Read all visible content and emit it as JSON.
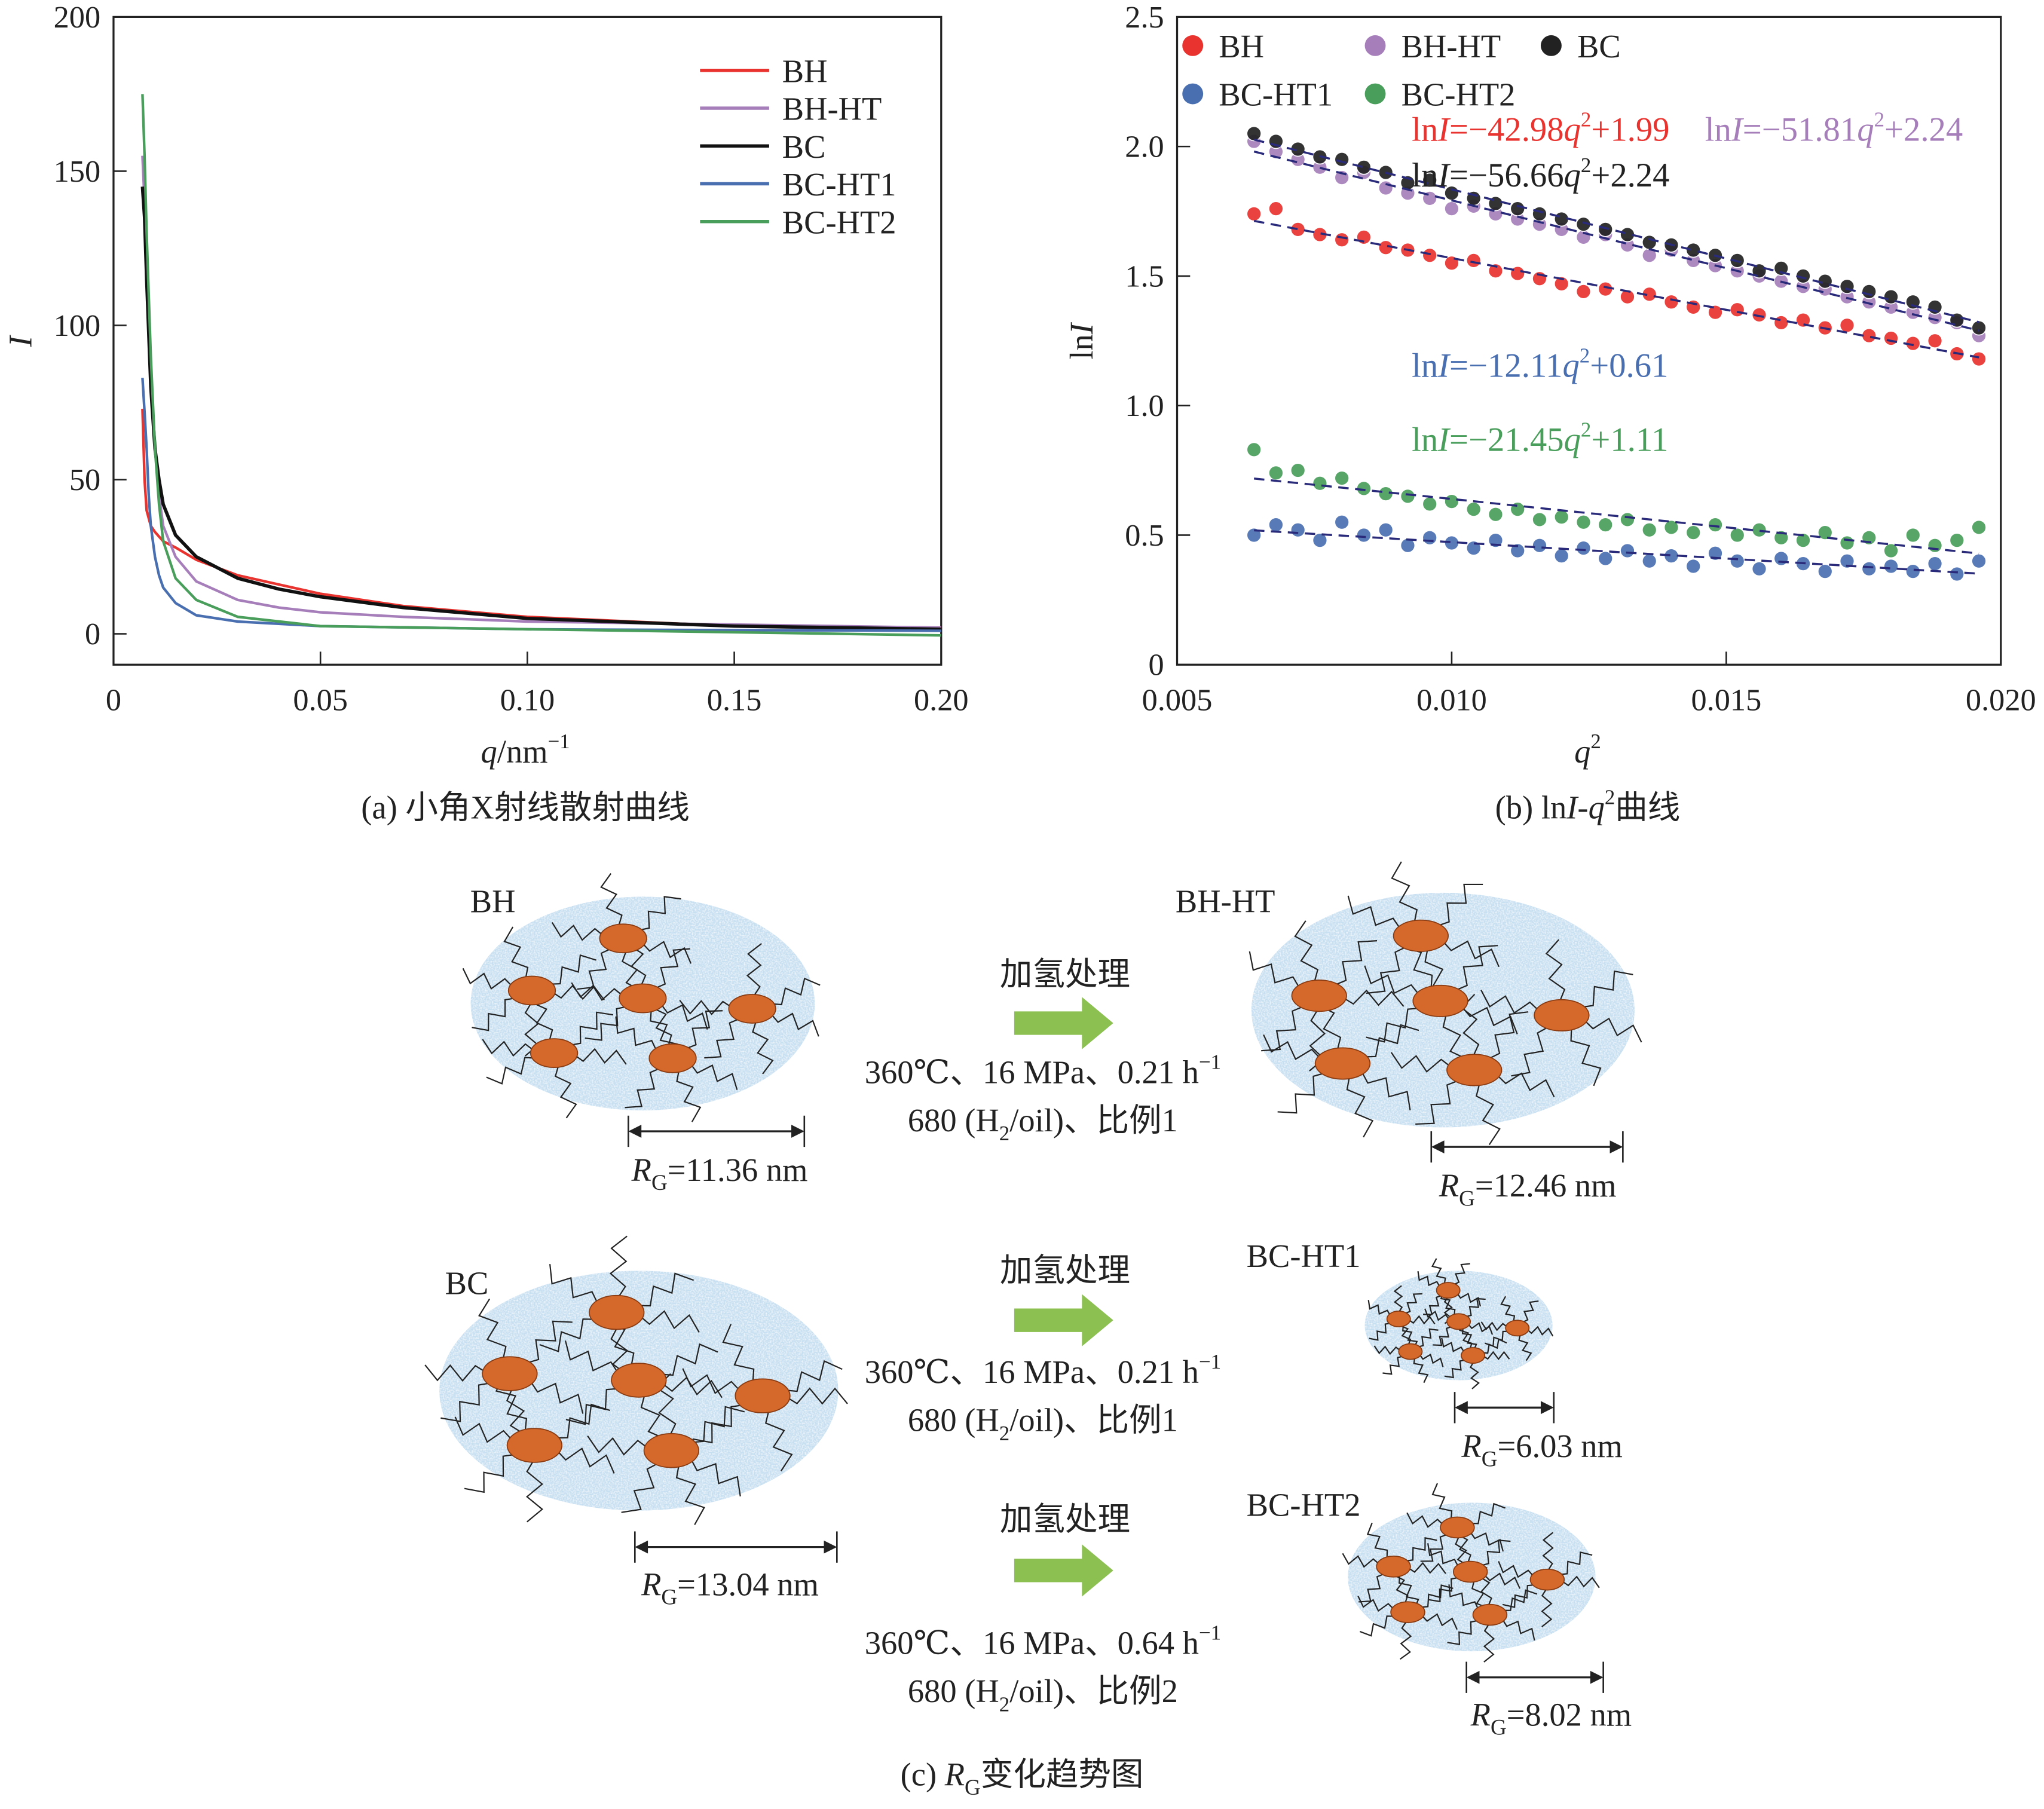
{
  "chart_data": [
    {
      "type": "line",
      "caption": "(a) 小角X射线散射曲线",
      "xlabel": {
        "var": "q",
        "unit": "/nm",
        "sup": "−1"
      },
      "ylabel": "I",
      "xlim": [
        0,
        0.2
      ],
      "ylim": [
        -10,
        200
      ],
      "xticks": [
        0,
        0.05,
        0.1,
        0.15,
        0.2
      ],
      "xtick_labels": [
        "0",
        "0.05",
        "0.10",
        "0.15",
        "0.20"
      ],
      "yticks": [
        0,
        50,
        100,
        150,
        200
      ],
      "ytick_labels": [
        "0",
        "50",
        "100",
        "150",
        "200"
      ],
      "grid": false,
      "legend_position": "top-right",
      "series": [
        {
          "name": "BH",
          "color": "#e8332f",
          "x": [
            0.007,
            0.0075,
            0.008,
            0.009,
            0.01,
            0.012,
            0.015,
            0.02,
            0.03,
            0.04,
            0.05,
            0.07,
            0.1,
            0.15,
            0.2
          ],
          "y": [
            73,
            50,
            40,
            35,
            33,
            30,
            28,
            24,
            19,
            16,
            13,
            9,
            5.5,
            2.5,
            2
          ]
        },
        {
          "name": "BH-HT",
          "color": "#a67fba",
          "x": [
            0.007,
            0.0075,
            0.008,
            0.009,
            0.01,
            0.011,
            0.012,
            0.015,
            0.02,
            0.03,
            0.04,
            0.05,
            0.07,
            0.1,
            0.15,
            0.2
          ],
          "y": [
            155,
            140,
            120,
            85,
            60,
            45,
            35,
            25,
            17,
            11,
            8.5,
            7,
            5.5,
            4,
            3,
            2
          ]
        },
        {
          "name": "BC",
          "color": "#111111",
          "x": [
            0.007,
            0.0075,
            0.008,
            0.009,
            0.01,
            0.011,
            0.012,
            0.015,
            0.02,
            0.03,
            0.04,
            0.05,
            0.07,
            0.1,
            0.15,
            0.2
          ],
          "y": [
            145,
            135,
            115,
            80,
            60,
            50,
            42,
            32,
            25,
            18,
            14.5,
            12,
            8.5,
            5,
            2.5,
            1.5
          ]
        },
        {
          "name": "BC-HT1",
          "color": "#4a6fb0",
          "x": [
            0.007,
            0.0075,
            0.008,
            0.0085,
            0.009,
            0.01,
            0.011,
            0.012,
            0.015,
            0.02,
            0.03,
            0.05,
            0.1,
            0.15,
            0.2
          ],
          "y": [
            83,
            72,
            60,
            45,
            35,
            25,
            19,
            15,
            10,
            6,
            4,
            2.5,
            1.5,
            1.2,
            1
          ]
        },
        {
          "name": "BC-HT2",
          "color": "#4a9e5c",
          "x": [
            0.007,
            0.0075,
            0.008,
            0.009,
            0.01,
            0.011,
            0.012,
            0.015,
            0.02,
            0.03,
            0.05,
            0.1,
            0.15,
            0.2
          ],
          "y": [
            175,
            155,
            130,
            90,
            60,
            42,
            30,
            18,
            11,
            5.5,
            2.5,
            1.5,
            0.5,
            -0.5
          ]
        }
      ]
    },
    {
      "type": "scatter",
      "caption": {
        "prefix": "(b) ln",
        "I": "I",
        "dash": "-",
        "q": "q",
        "sup": "2",
        "suffix": "曲线"
      },
      "xlabel": {
        "var": "q",
        "sup": "2"
      },
      "ylabel": {
        "ln": "ln",
        "I": "I"
      },
      "xlim": [
        0.005,
        0.02
      ],
      "ylim": [
        0,
        2.5
      ],
      "xticks": [
        0.005,
        0.01,
        0.015,
        0.02
      ],
      "xtick_labels": [
        "0.005",
        "0.010",
        "0.015",
        "0.020"
      ],
      "yticks": [
        0,
        0.5,
        1.0,
        1.5,
        2.0,
        2.5
      ],
      "ytick_labels": [
        "0",
        "0.5",
        "1.0",
        "1.5",
        "2.0",
        "2.5"
      ],
      "grid": false,
      "legend_position": "top-left",
      "fit_line_style": "dashed",
      "fit_line_color": "#2a2a7a",
      "x": [
        0.0064,
        0.0068,
        0.0072,
        0.0076,
        0.008,
        0.0084,
        0.0088,
        0.0092,
        0.0096,
        0.01,
        0.0104,
        0.0108,
        0.0112,
        0.0116,
        0.012,
        0.0124,
        0.0128,
        0.0132,
        0.0136,
        0.014,
        0.0144,
        0.0148,
        0.0152,
        0.0156,
        0.016,
        0.0164,
        0.0168,
        0.0172,
        0.0176,
        0.018,
        0.0184,
        0.0188,
        0.0192,
        0.0196
      ],
      "series": [
        {
          "name": "BH",
          "color": "#e8332f",
          "equation": {
            "coef": "−42.98",
            "intercept": "+1.99"
          },
          "y": [
            1.74,
            1.76,
            1.68,
            1.66,
            1.64,
            1.65,
            1.61,
            1.6,
            1.58,
            1.55,
            1.56,
            1.52,
            1.51,
            1.49,
            1.47,
            1.44,
            1.45,
            1.42,
            1.43,
            1.4,
            1.38,
            1.36,
            1.37,
            1.35,
            1.32,
            1.33,
            1.3,
            1.31,
            1.27,
            1.26,
            1.24,
            1.25,
            1.2,
            1.18
          ]
        },
        {
          "name": "BH-HT",
          "color": "#a67fba",
          "equation": {
            "coef": "−51.81",
            "intercept": "+2.24"
          },
          "y": [
            2.02,
            1.98,
            1.95,
            1.92,
            1.88,
            1.9,
            1.84,
            1.82,
            1.8,
            1.76,
            1.77,
            1.74,
            1.72,
            1.7,
            1.68,
            1.65,
            1.66,
            1.62,
            1.58,
            1.6,
            1.56,
            1.54,
            1.52,
            1.5,
            1.48,
            1.46,
            1.45,
            1.42,
            1.4,
            1.38,
            1.36,
            1.34,
            1.32,
            1.27
          ]
        },
        {
          "name": "BC",
          "color": "#222222",
          "equation": {
            "coef": "−56.66",
            "intercept": "+2.24"
          },
          "y": [
            2.05,
            2.02,
            1.99,
            1.96,
            1.95,
            1.92,
            1.9,
            1.86,
            1.87,
            1.82,
            1.8,
            1.78,
            1.76,
            1.74,
            1.72,
            1.7,
            1.68,
            1.66,
            1.63,
            1.62,
            1.6,
            1.58,
            1.56,
            1.52,
            1.53,
            1.5,
            1.48,
            1.46,
            1.44,
            1.42,
            1.4,
            1.38,
            1.33,
            1.3
          ]
        },
        {
          "name": "BC-HT1",
          "color": "#4a6fb0",
          "equation": {
            "coef": "−12.11",
            "intercept": "+0.61"
          },
          "y": [
            0.5,
            0.54,
            0.52,
            0.48,
            0.55,
            0.5,
            0.52,
            0.46,
            0.49,
            0.47,
            0.45,
            0.48,
            0.44,
            0.46,
            0.42,
            0.45,
            0.41,
            0.44,
            0.4,
            0.42,
            0.38,
            0.43,
            0.4,
            0.37,
            0.41,
            0.39,
            0.36,
            0.4,
            0.37,
            0.38,
            0.36,
            0.39,
            0.35,
            0.4
          ]
        },
        {
          "name": "BC-HT2",
          "color": "#4a9e5c",
          "equation": {
            "coef": "−21.45",
            "intercept": "+1.11"
          },
          "y": [
            0.83,
            0.74,
            0.75,
            0.7,
            0.72,
            0.68,
            0.66,
            0.65,
            0.62,
            0.63,
            0.6,
            0.58,
            0.6,
            0.56,
            0.57,
            0.55,
            0.54,
            0.56,
            0.52,
            0.53,
            0.51,
            0.54,
            0.5,
            0.52,
            0.49,
            0.48,
            0.51,
            0.47,
            0.49,
            0.44,
            0.5,
            0.46,
            0.48,
            0.53
          ]
        }
      ]
    }
  ],
  "eq_parts": {
    "ln": "ln",
    "I": "I",
    "eq": "=",
    "q": "q",
    "sq": "2"
  },
  "diagram": {
    "caption": {
      "prefix": "(c) ",
      "R": "R",
      "sub": "G",
      "suffix": "变化趋势图"
    },
    "rg_parts": {
      "R": "R",
      "sub": "G"
    },
    "colors": {
      "cluster": "#c6dff1",
      "particle": "#d4692b",
      "arrow": "#8cc152"
    },
    "samples": [
      {
        "label": "BH",
        "rg": "=11.36 nm"
      },
      {
        "label": "BH-HT",
        "rg": "=12.46 nm"
      },
      {
        "label": "BC",
        "rg": "=13.04 nm"
      },
      {
        "label": "BC-HT1",
        "rg": "=6.03 nm"
      },
      {
        "label": "BC-HT2",
        "rg": "=8.02 nm"
      }
    ],
    "processes": [
      {
        "title": "加氢处理",
        "line1": "360℃、16 MPa、0.21 h",
        "line1_sup": "−1",
        "line2_a": "680 (H",
        "line2_sub": "2",
        "line2_b": "/oil)、比例1"
      },
      {
        "title": "加氢处理",
        "line1": "360℃、16 MPa、0.21 h",
        "line1_sup": "−1",
        "line2_a": "680 (H",
        "line2_sub": "2",
        "line2_b": "/oil)、比例1"
      },
      {
        "title": "加氢处理",
        "line1": "360℃、16 MPa、0.64 h",
        "line1_sup": "−1",
        "line2_a": "680 (H",
        "line2_sub": "2",
        "line2_b": "/oil)、比例2"
      }
    ]
  }
}
